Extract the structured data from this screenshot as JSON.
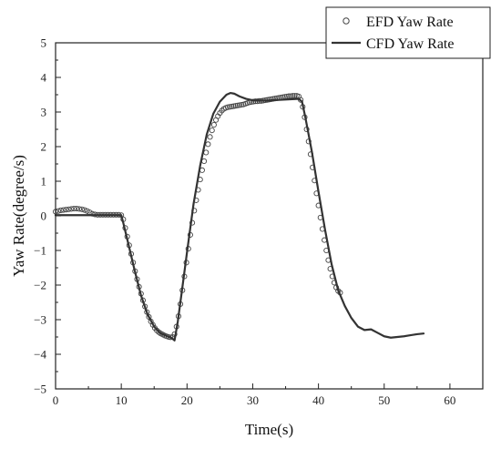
{
  "chart_data": {
    "type": "line",
    "xlabel": "Time(s)",
    "ylabel": "Yaw Rate(degree/s)",
    "xlim": [
      0,
      65
    ],
    "ylim": [
      -5,
      5
    ],
    "xticks": [
      0,
      10,
      20,
      30,
      40,
      50,
      60
    ],
    "yticks": [
      -5,
      -4,
      -3,
      -2,
      -1,
      0,
      1,
      2,
      3,
      4,
      5
    ],
    "grid": false,
    "legend_position": "top-right",
    "series": [
      {
        "name": "EFD Yaw Rate",
        "style": "open-circle markers",
        "color": "#444444",
        "points": [
          [
            0.0,
            0.12
          ],
          [
            0.4,
            0.14
          ],
          [
            0.8,
            0.16
          ],
          [
            1.2,
            0.17
          ],
          [
            1.6,
            0.18
          ],
          [
            2.0,
            0.19
          ],
          [
            2.4,
            0.2
          ],
          [
            2.8,
            0.21
          ],
          [
            3.2,
            0.21
          ],
          [
            3.6,
            0.2
          ],
          [
            4.0,
            0.19
          ],
          [
            4.4,
            0.17
          ],
          [
            4.8,
            0.14
          ],
          [
            5.2,
            0.1
          ],
          [
            5.6,
            0.06
          ],
          [
            6.0,
            0.04
          ],
          [
            6.4,
            0.03
          ],
          [
            6.8,
            0.03
          ],
          [
            7.2,
            0.03
          ],
          [
            7.6,
            0.03
          ],
          [
            8.0,
            0.03
          ],
          [
            8.4,
            0.03
          ],
          [
            8.8,
            0.03
          ],
          [
            9.2,
            0.03
          ],
          [
            9.6,
            0.03
          ],
          [
            10.0,
            0.02
          ],
          [
            10.3,
            -0.1
          ],
          [
            10.6,
            -0.35
          ],
          [
            10.9,
            -0.6
          ],
          [
            11.2,
            -0.85
          ],
          [
            11.5,
            -1.1
          ],
          [
            11.8,
            -1.35
          ],
          [
            12.1,
            -1.6
          ],
          [
            12.4,
            -1.83
          ],
          [
            12.7,
            -2.05
          ],
          [
            13.0,
            -2.25
          ],
          [
            13.3,
            -2.44
          ],
          [
            13.6,
            -2.62
          ],
          [
            13.9,
            -2.78
          ],
          [
            14.2,
            -2.92
          ],
          [
            14.5,
            -3.05
          ],
          [
            14.8,
            -3.15
          ],
          [
            15.1,
            -3.24
          ],
          [
            15.4,
            -3.31
          ],
          [
            15.7,
            -3.36
          ],
          [
            16.0,
            -3.4
          ],
          [
            16.3,
            -3.43
          ],
          [
            16.6,
            -3.46
          ],
          [
            16.9,
            -3.48
          ],
          [
            17.2,
            -3.5
          ],
          [
            17.5,
            -3.51
          ],
          [
            17.8,
            -3.5
          ],
          [
            18.1,
            -3.42
          ],
          [
            18.4,
            -3.2
          ],
          [
            18.7,
            -2.9
          ],
          [
            19.0,
            -2.55
          ],
          [
            19.3,
            -2.15
          ],
          [
            19.6,
            -1.75
          ],
          [
            19.9,
            -1.35
          ],
          [
            20.2,
            -0.95
          ],
          [
            20.5,
            -0.55
          ],
          [
            20.8,
            -0.2
          ],
          [
            21.1,
            0.15
          ],
          [
            21.4,
            0.45
          ],
          [
            21.7,
            0.75
          ],
          [
            22.0,
            1.05
          ],
          [
            22.3,
            1.32
          ],
          [
            22.6,
            1.58
          ],
          [
            22.9,
            1.83
          ],
          [
            23.2,
            2.07
          ],
          [
            23.5,
            2.28
          ],
          [
            23.8,
            2.47
          ],
          [
            24.1,
            2.63
          ],
          [
            24.4,
            2.77
          ],
          [
            24.7,
            2.88
          ],
          [
            25.0,
            2.97
          ],
          [
            25.3,
            3.04
          ],
          [
            25.6,
            3.09
          ],
          [
            25.9,
            3.12
          ],
          [
            26.2,
            3.14
          ],
          [
            26.5,
            3.15
          ],
          [
            26.8,
            3.16
          ],
          [
            27.1,
            3.17
          ],
          [
            27.4,
            3.18
          ],
          [
            27.7,
            3.19
          ],
          [
            28.0,
            3.2
          ],
          [
            28.3,
            3.21
          ],
          [
            28.6,
            3.22
          ],
          [
            28.9,
            3.24
          ],
          [
            29.2,
            3.26
          ],
          [
            29.5,
            3.28
          ],
          [
            29.8,
            3.29
          ],
          [
            30.1,
            3.3
          ],
          [
            30.4,
            3.31
          ],
          [
            30.7,
            3.31
          ],
          [
            31.0,
            3.32
          ],
          [
            31.3,
            3.32
          ],
          [
            31.6,
            3.33
          ],
          [
            31.9,
            3.34
          ],
          [
            32.2,
            3.35
          ],
          [
            32.5,
            3.36
          ],
          [
            32.8,
            3.37
          ],
          [
            33.1,
            3.38
          ],
          [
            33.4,
            3.39
          ],
          [
            33.7,
            3.4
          ],
          [
            34.0,
            3.41
          ],
          [
            34.3,
            3.42
          ],
          [
            34.6,
            3.43
          ],
          [
            34.9,
            3.44
          ],
          [
            35.2,
            3.45
          ],
          [
            35.5,
            3.46
          ],
          [
            35.8,
            3.46
          ],
          [
            36.1,
            3.47
          ],
          [
            36.4,
            3.47
          ],
          [
            36.7,
            3.47
          ],
          [
            37.0,
            3.45
          ],
          [
            37.3,
            3.35
          ],
          [
            37.6,
            3.15
          ],
          [
            37.9,
            2.85
          ],
          [
            38.2,
            2.5
          ],
          [
            38.5,
            2.15
          ],
          [
            38.8,
            1.78
          ],
          [
            39.1,
            1.4
          ],
          [
            39.4,
            1.02
          ],
          [
            39.7,
            0.65
          ],
          [
            40.0,
            0.3
          ],
          [
            40.3,
            -0.05
          ],
          [
            40.6,
            -0.38
          ],
          [
            40.9,
            -0.7
          ],
          [
            41.2,
            -1.0
          ],
          [
            41.5,
            -1.28
          ],
          [
            41.8,
            -1.53
          ],
          [
            42.1,
            -1.75
          ],
          [
            42.4,
            -1.93
          ],
          [
            42.7,
            -2.07
          ],
          [
            43.0,
            -2.17
          ],
          [
            43.3,
            -2.22
          ]
        ]
      },
      {
        "name": "CFD Yaw Rate",
        "style": "solid line",
        "color": "#333333",
        "points": [
          [
            0,
            0.02
          ],
          [
            5,
            0.02
          ],
          [
            10.0,
            0.02
          ],
          [
            10.3,
            -0.2
          ],
          [
            11.0,
            -0.75
          ],
          [
            12.0,
            -1.55
          ],
          [
            13.0,
            -2.3
          ],
          [
            14.0,
            -2.85
          ],
          [
            15.0,
            -3.2
          ],
          [
            16.0,
            -3.4
          ],
          [
            17.0,
            -3.48
          ],
          [
            17.6,
            -3.52
          ],
          [
            18.1,
            -3.6
          ],
          [
            18.6,
            -3.05
          ],
          [
            19.2,
            -2.2
          ],
          [
            20.0,
            -1.05
          ],
          [
            21.0,
            0.35
          ],
          [
            22.0,
            1.45
          ],
          [
            23.0,
            2.35
          ],
          [
            24.0,
            2.95
          ],
          [
            25.0,
            3.3
          ],
          [
            26.0,
            3.5
          ],
          [
            26.6,
            3.55
          ],
          [
            27.2,
            3.53
          ],
          [
            28.0,
            3.45
          ],
          [
            29.0,
            3.38
          ],
          [
            30.0,
            3.34
          ],
          [
            31.0,
            3.33
          ],
          [
            32.0,
            3.33
          ],
          [
            33.0,
            3.34
          ],
          [
            34.0,
            3.35
          ],
          [
            35.0,
            3.36
          ],
          [
            36.0,
            3.37
          ],
          [
            37.0,
            3.38
          ],
          [
            37.5,
            3.3
          ],
          [
            38.0,
            2.85
          ],
          [
            39.0,
            1.85
          ],
          [
            40.0,
            0.7
          ],
          [
            41.0,
            -0.4
          ],
          [
            42.0,
            -1.4
          ],
          [
            43.0,
            -2.15
          ],
          [
            44.0,
            -2.6
          ],
          [
            45.0,
            -2.95
          ],
          [
            46.0,
            -3.2
          ],
          [
            47.0,
            -3.3
          ],
          [
            48.0,
            -3.28
          ],
          [
            49.0,
            -3.38
          ],
          [
            50.0,
            -3.48
          ],
          [
            51.0,
            -3.52
          ],
          [
            52.0,
            -3.5
          ],
          [
            53.0,
            -3.48
          ],
          [
            54.0,
            -3.45
          ],
          [
            55.0,
            -3.42
          ],
          [
            56.0,
            -3.4
          ]
        ]
      }
    ]
  }
}
